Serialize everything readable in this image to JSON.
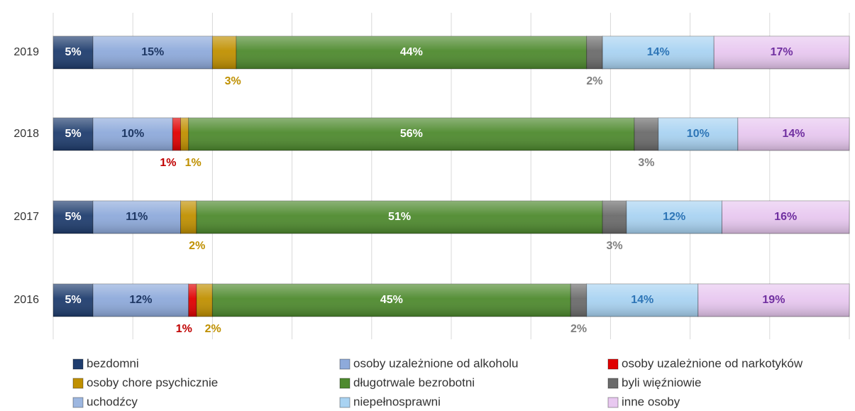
{
  "chart_data": {
    "type": "stacked-bar-horizontal",
    "categories": [
      "2019",
      "2018",
      "2017",
      "2016"
    ],
    "xlim": [
      0,
      100
    ],
    "xticks": [
      0,
      10,
      20,
      30,
      40,
      50,
      60,
      70,
      80,
      90,
      100
    ],
    "grid": true,
    "series": [
      {
        "name": "bezdomni",
        "color": "#1f3d6e",
        "label_color": "#ffffff",
        "values": [
          5,
          5,
          5,
          5
        ],
        "value_labels": [
          "5%",
          "5%",
          "5%",
          "5%"
        ]
      },
      {
        "name": "osoby uzależnione od alkoholu",
        "color": "#8eaadb",
        "label_color": "#1f3864",
        "values": [
          15,
          10,
          11,
          12
        ],
        "value_labels": [
          "15%",
          "10%",
          "11%",
          "12%"
        ]
      },
      {
        "name": "osoby uzależnione od narkotyków",
        "color": "#e00000",
        "label_color": "#c00000",
        "values": [
          null,
          1,
          null,
          1
        ],
        "value_labels": [
          null,
          "1%",
          null,
          "1%"
        ]
      },
      {
        "name": "osoby chore psychicznie",
        "color": "#c09000",
        "label_color": "#bf9000",
        "values": [
          3,
          1,
          2,
          2
        ],
        "value_labels": [
          "3%",
          "1%",
          "2%",
          "2%"
        ]
      },
      {
        "name": "długotrwale bezrobotni",
        "color": "#4e8a2e",
        "label_color": "#ffffff",
        "values": [
          44,
          56,
          51,
          45
        ],
        "value_labels": [
          "44%",
          "56%",
          "51%",
          "45%"
        ]
      },
      {
        "name": "byli więźniowie",
        "color": "#6b6b6b",
        "label_color": "#7f7f7f",
        "values": [
          2,
          3,
          3,
          2
        ],
        "value_labels": [
          "2%",
          "3%",
          "3%",
          "2%"
        ]
      },
      {
        "name": "uchodźcy",
        "color": "#9db7e0",
        "label_color": "#1f3864",
        "values": [
          null,
          null,
          null,
          null
        ],
        "value_labels": [
          null,
          null,
          null,
          null
        ]
      },
      {
        "name": "niepełnosprawni",
        "color": "#a9d3f2",
        "label_color": "#2e75b6",
        "values": [
          14,
          10,
          12,
          14
        ],
        "value_labels": [
          "14%",
          "10%",
          "12%",
          "14%"
        ]
      },
      {
        "name": "inne osoby",
        "color": "#e8c8f0",
        "label_color": "#7030a0",
        "values": [
          17,
          14,
          16,
          19
        ],
        "value_labels": [
          "17%",
          "14%",
          "16%",
          "19%"
        ]
      }
    ]
  }
}
